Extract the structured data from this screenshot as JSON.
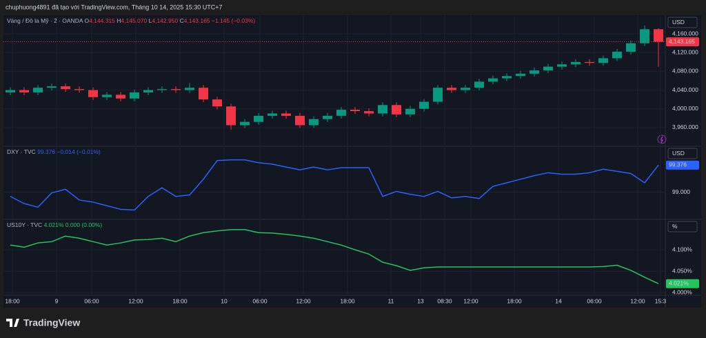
{
  "header": {
    "text": "chuphuong4891 đã tạo với TradingView.com, Tháng 10 14, 2025 15:30 UTC+7"
  },
  "footer": {
    "brand": "TradingView"
  },
  "chart_data": [
    {
      "type": "candlestick",
      "symbol": "Vàng / Đô la Mỹ · 2 · OANDA",
      "legend": [
        {
          "key": "O",
          "value": "4,144.315"
        },
        {
          "key": "H",
          "value": "4,145.070"
        },
        {
          "key": "L",
          "value": "4,142.950"
        },
        {
          "key": "C",
          "value": "4,143.165"
        }
      ],
      "change": "−1.145 (−0.03%)",
      "unit": "USD",
      "last_label": "4,143.165",
      "up_color": "#089981",
      "down_color": "#f23645",
      "x": [
        0,
        1,
        2,
        3,
        4,
        5,
        6,
        7,
        8,
        9,
        10,
        11,
        12,
        13,
        14,
        15,
        16,
        17,
        18,
        19,
        20,
        21,
        22,
        23,
        24,
        25,
        26,
        27,
        28,
        29,
        30,
        31,
        32,
        33,
        34,
        35,
        36,
        37,
        38,
        39,
        40,
        41,
        42,
        43,
        44,
        45,
        46,
        47
      ],
      "open": [
        4035,
        4040,
        4035,
        4045,
        4048,
        4042,
        4040,
        4025,
        4030,
        4022,
        4035,
        4040,
        4042,
        4040,
        4045,
        4020,
        4005,
        3965,
        3972,
        3985,
        3990,
        3985,
        3965,
        3978,
        3985,
        3998,
        3995,
        3990,
        4008,
        3988,
        4000,
        4015,
        4045,
        4040,
        4045,
        4058,
        4065,
        4070,
        4075,
        4082,
        4090,
        4095,
        4100,
        4098,
        4108,
        4122,
        4140,
        4170
      ],
      "high": [
        4046,
        4046,
        4051,
        4054,
        4054,
        4048,
        4046,
        4036,
        4036,
        4041,
        4046,
        4048,
        4048,
        4055,
        4051,
        4026,
        4011,
        3978,
        3991,
        3996,
        3996,
        3991,
        3984,
        3991,
        4004,
        4004,
        4001,
        4014,
        4014,
        4006,
        4021,
        4051,
        4051,
        4051,
        4064,
        4071,
        4076,
        4081,
        4088,
        4096,
        4101,
        4106,
        4106,
        4114,
        4128,
        4146,
        4178,
        4172
      ],
      "low": [
        4029,
        4029,
        4029,
        4039,
        4036,
        4034,
        4019,
        4019,
        4016,
        4016,
        4029,
        4034,
        4034,
        4034,
        4014,
        3999,
        3955,
        3959,
        3966,
        3979,
        3979,
        3959,
        3959,
        3972,
        3979,
        3989,
        3984,
        3984,
        3982,
        3982,
        3994,
        4009,
        4034,
        4034,
        4039,
        4052,
        4059,
        4064,
        4069,
        4076,
        4084,
        4089,
        4092,
        4092,
        4102,
        4116,
        4134,
        4090
      ],
      "close": [
        4040,
        4035,
        4045,
        4048,
        4042,
        4040,
        4025,
        4030,
        4022,
        4035,
        4040,
        4042,
        4040,
        4045,
        4020,
        4005,
        3965,
        3972,
        3985,
        3990,
        3985,
        3965,
        3978,
        3985,
        3998,
        3995,
        3990,
        4008,
        3988,
        4000,
        4015,
        4045,
        4040,
        4045,
        4058,
        4065,
        4070,
        4075,
        4082,
        4090,
        4095,
        4100,
        4098,
        4108,
        4122,
        4140,
        4170,
        4143.165
      ],
      "ylim": [
        3920,
        4200
      ],
      "yticks": [
        {
          "value": 4160,
          "label": "4,160.000"
        },
        {
          "value": 4120,
          "label": "4,120.000"
        },
        {
          "value": 4080,
          "label": "4,080.000"
        },
        {
          "value": 4040,
          "label": "4,040.000"
        },
        {
          "value": 4000,
          "label": "4,000.000"
        },
        {
          "value": 3960,
          "label": "3,960.000"
        }
      ],
      "grid": true
    },
    {
      "type": "line",
      "symbol": "DXY · TVC",
      "change": "−0.014 (−0.01%)",
      "unit": "USD",
      "last_label": "99.376",
      "color": "#2962ff",
      "x": [
        0,
        1,
        2,
        3,
        4,
        5,
        6,
        7,
        8,
        9,
        10,
        11,
        12,
        13,
        14,
        15,
        16,
        17,
        18,
        19,
        20,
        21,
        22,
        23,
        24,
        25,
        26,
        27,
        28,
        29,
        30,
        31,
        32,
        33,
        34,
        35,
        36,
        37,
        38,
        39,
        40,
        41,
        42,
        43,
        44,
        45,
        46,
        47
      ],
      "values": [
        98.94,
        98.84,
        98.79,
        98.99,
        99.04,
        98.89,
        98.86,
        98.81,
        98.76,
        98.75,
        98.94,
        99.06,
        98.94,
        98.96,
        99.18,
        99.44,
        99.45,
        99.45,
        99.41,
        99.39,
        99.35,
        99.31,
        99.35,
        99.31,
        99.34,
        99.34,
        99.34,
        98.94,
        99.01,
        98.97,
        98.94,
        99.01,
        98.92,
        98.94,
        98.91,
        99.08,
        99.13,
        99.18,
        99.23,
        99.27,
        99.25,
        99.25,
        99.27,
        99.32,
        99.29,
        99.26,
        99.13,
        99.376
      ],
      "ylim": [
        98.62,
        99.64
      ],
      "yticks": [
        {
          "value": 99,
          "label": "99.000"
        }
      ],
      "grid": true
    },
    {
      "type": "line",
      "symbol": "US10Y · TVC",
      "change": "0.000 (0.00%)",
      "unit": "%",
      "last_label": "4.021%",
      "color": "#22c55e",
      "x": [
        0,
        1,
        2,
        3,
        4,
        5,
        6,
        7,
        8,
        9,
        10,
        11,
        12,
        13,
        14,
        15,
        16,
        17,
        18,
        19,
        20,
        21,
        22,
        23,
        24,
        25,
        26,
        27,
        28,
        29,
        30,
        31,
        32,
        33,
        34,
        35,
        36,
        37,
        38,
        39,
        40,
        41,
        42,
        43,
        44,
        45,
        46,
        47
      ],
      "values": [
        4.111,
        4.106,
        4.116,
        4.119,
        4.132,
        4.127,
        4.119,
        4.111,
        4.116,
        4.123,
        4.124,
        4.127,
        4.119,
        4.132,
        4.14,
        4.144,
        4.147,
        4.147,
        4.14,
        4.139,
        4.136,
        4.132,
        4.127,
        4.119,
        4.111,
        4.1,
        4.09,
        4.071,
        4.063,
        4.052,
        4.058,
        4.06,
        4.06,
        4.06,
        4.06,
        4.06,
        4.06,
        4.06,
        4.06,
        4.06,
        4.06,
        4.06,
        4.06,
        4.061,
        4.064,
        4.052,
        4.036,
        4.021
      ],
      "ylim": [
        3.994,
        4.171
      ],
      "yticks": [
        {
          "value": 4.1,
          "label": "4.100%"
        },
        {
          "value": 4.05,
          "label": "4.050%"
        },
        {
          "value": 4.0,
          "label": "4.000%"
        }
      ],
      "grid": true,
      "xlim": [
        -0.5,
        47.5
      ],
      "xticks": [
        {
          "value": 0.15,
          "label": "18:00"
        },
        {
          "value": 3.35,
          "label": "9"
        },
        {
          "value": 5.9,
          "label": "06:00"
        },
        {
          "value": 9.1,
          "label": "12:00"
        },
        {
          "value": 12.3,
          "label": "18:00"
        },
        {
          "value": 15.5,
          "label": "10"
        },
        {
          "value": 18.1,
          "label": "06:00"
        },
        {
          "value": 21.25,
          "label": "12:00"
        },
        {
          "value": 24.45,
          "label": "18:00"
        },
        {
          "value": 27.6,
          "label": "11"
        },
        {
          "value": 29.75,
          "label": "13"
        },
        {
          "value": 31.5,
          "label": "08:30"
        },
        {
          "value": 33.4,
          "label": "12:00"
        },
        {
          "value": 36.55,
          "label": "18:00"
        },
        {
          "value": 39.75,
          "label": "14"
        },
        {
          "value": 42.35,
          "label": "06:00"
        },
        {
          "value": 45.5,
          "label": "12:00"
        },
        {
          "value": 47.15,
          "label": "15:3"
        }
      ]
    }
  ]
}
